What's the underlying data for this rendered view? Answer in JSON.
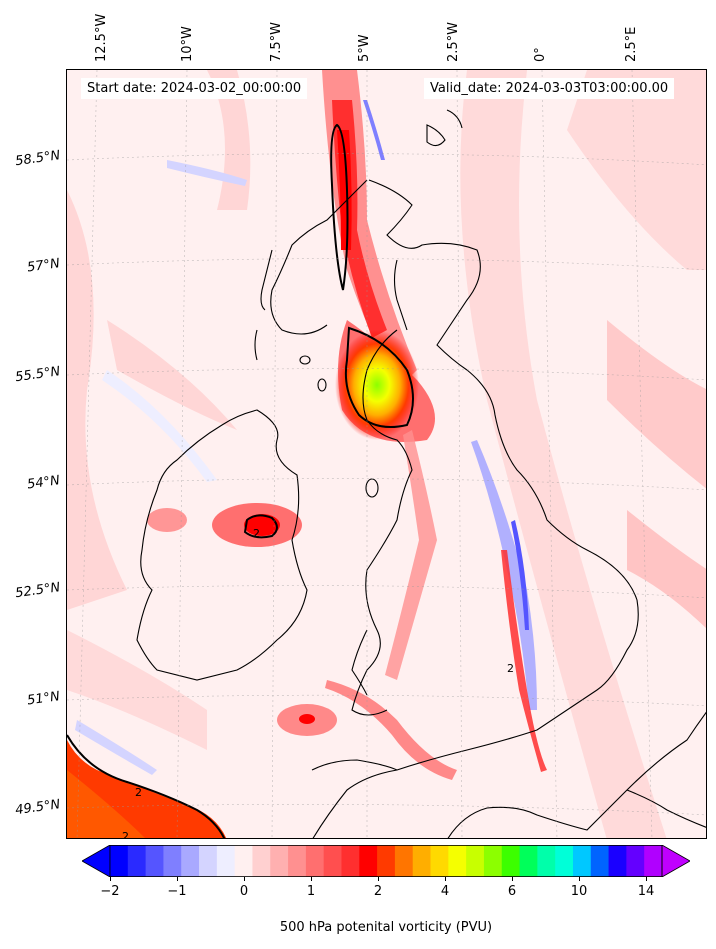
{
  "map": {
    "start_date": "Start date: 2024-03-02_00:00:00",
    "valid_date": "Valid_date: 2024-03-03T03:00:00.00",
    "longitude_labels": [
      "12.5°W",
      "10°W",
      "7.5°W",
      "5°W",
      "2.5°W",
      "0°",
      "2.5°E"
    ],
    "latitude_labels": [
      "58.5°N",
      "57°N",
      "55.5°N",
      "54°N",
      "52.5°N",
      "51°N",
      "49.5°N"
    ],
    "contour_labels": [
      "2",
      "2",
      "2",
      "2"
    ]
  },
  "colorbar": {
    "title": "500 hPa potenital vorticity (PVU)",
    "tick_labels": [
      "−2",
      "−1",
      "0",
      "1",
      "2",
      "4",
      "6",
      "10",
      "14"
    ],
    "colors": [
      "#0000ff",
      "#2a2aff",
      "#5555ff",
      "#7f7fff",
      "#a9a9ff",
      "#d4d4ff",
      "#eeeeff",
      "#fff0f0",
      "#ffd0d0",
      "#ffb0b0",
      "#ff9090",
      "#ff6f6f",
      "#ff4f4f",
      "#ff2f2f",
      "#ff0000",
      "#ff3a00",
      "#ff7500",
      "#ffae00",
      "#ffd900",
      "#f5ff00",
      "#c8ff00",
      "#8cff00",
      "#3cff00",
      "#00ff5a",
      "#00ffaa",
      "#00ffd8",
      "#00c8ff",
      "#0064ff",
      "#1a00ff",
      "#6400ff",
      "#b000ff"
    ],
    "extend_low_color": "#0000ff",
    "extend_high_color": "#c000ff"
  }
}
